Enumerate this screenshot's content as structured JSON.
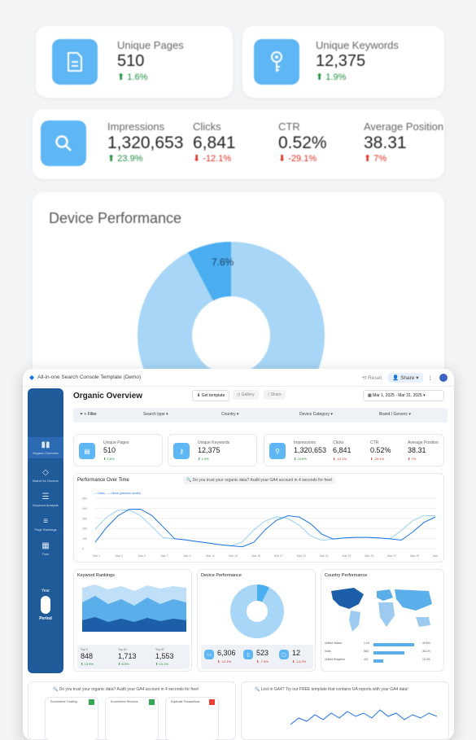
{
  "stats_row1": [
    {
      "label": "Unique Pages",
      "value": "510",
      "delta": "1.6%",
      "dir": "up",
      "icon": "document-icon"
    },
    {
      "label": "Unique Keywords",
      "value": "12,375",
      "delta": "1.9%",
      "dir": "up",
      "icon": "key-icon"
    }
  ],
  "stats_row2": {
    "icon": "search-icon",
    "metrics": [
      {
        "label": "Impressions",
        "value": "1,320,653",
        "delta": "23.9%",
        "dir": "up"
      },
      {
        "label": "Clicks",
        "value": "6,841",
        "delta": "-12.1%",
        "dir": "down"
      },
      {
        "label": "CTR",
        "value": "0.52%",
        "delta": "-29.1%",
        "dir": "down"
      },
      {
        "label": "Average Position",
        "value": "38.31",
        "delta": "7%",
        "dir": "up_red"
      }
    ]
  },
  "device_performance": {
    "title": "Device Performance",
    "slice_label": "7.6%",
    "chart_data": {
      "type": "pie",
      "categories": [
        "",
        ""
      ],
      "values": [
        92.4,
        7.6
      ],
      "title": "Device Performance"
    }
  },
  "dashboard": {
    "app_title": "All-in-one Search Console Template (Demo)",
    "top_reset": "Reset",
    "top_share": "Share",
    "page_title": "Organic Overview",
    "get_template": "Get template",
    "gallery": "Gallery",
    "share": "Share",
    "date_range": "Mar 1, 2025 - Mar 31, 2025",
    "filter_label": "+ Filter",
    "filters": [
      "Search type",
      "Country",
      "Device Category",
      "Brand / Generic"
    ],
    "sidebar": [
      "Organic Overview",
      "Brand Vs Generic",
      "Keyword Analysis",
      "Page Rankings",
      "Time"
    ],
    "sidebar_toggle_top": "Year",
    "sidebar_toggle_bottom": "Period",
    "kpis": [
      {
        "label": "Unique Pages",
        "value": "510",
        "delta": "1.6%"
      },
      {
        "label": "Unique Keywords",
        "value": "12,375",
        "delta": "1.9%"
      }
    ],
    "kpi_row": [
      {
        "label": "Impressions",
        "value": "1,320,653",
        "delta": "23.9%"
      },
      {
        "label": "Clicks",
        "value": "6,841",
        "delta": "-12.1%"
      },
      {
        "label": "CTR",
        "value": "0.52%",
        "delta": "-29.1%"
      },
      {
        "label": "Average Position",
        "value": "38.31",
        "delta": "7%"
      }
    ],
    "perf_title": "Performance Over Time",
    "banner": "Do you trust your organic data? Audit your GA4 account in 4 seconds for free!",
    "perf_legend": [
      "Clicks",
      "Clicks (previous month)"
    ],
    "perf_x": [
      "Mar 1",
      "Mar 3",
      "Mar 5",
      "Mar 7",
      "Mar 9",
      "Mar 11",
      "Mar 13",
      "Mar 15",
      "Mar 17",
      "Mar 19",
      "Mar 21",
      "Mar 23",
      "Mar 25",
      "Mar 27",
      "Mar 29",
      "Mar 31"
    ],
    "perf_y": [
      "500",
      "400",
      "300",
      "200",
      "100",
      "0"
    ],
    "kw_title": "Keyword Rankings",
    "kw_stats": [
      {
        "label": "Top 3",
        "value": "848",
        "delta": "13.9%"
      },
      {
        "label": "Top 10",
        "value": "1,713",
        "delta": "8.9%"
      },
      {
        "label": "Top 20",
        "value": "1,553",
        "delta": "10.1%"
      }
    ],
    "dev_title": "Device Performance",
    "dev_stats": [
      {
        "value": "6,306",
        "delta": "-12.4%"
      },
      {
        "value": "523",
        "delta": "-7.5%"
      },
      {
        "value": "12",
        "delta": "-14.3%"
      }
    ],
    "country_title": "Country Performance",
    "country_rows": [
      {
        "name": "United States",
        "value": "1.1K",
        "pct": "49.6%"
      },
      {
        "name": "India",
        "value": "554",
        "pct": "38.1%"
      },
      {
        "name": "United Kingdom",
        "value": "411",
        "pct": "12.2%"
      }
    ],
    "footer_left_banner": "Do you trust your organic data? Audit your GA4 account in 4 seconds for free!",
    "footer_right_banner": "Lost in GA4? Try our FREE template that contains UA reports with your GA4 data!",
    "footer_cards": [
      "Ecommerce Tracking",
      "Ecommerce Revenue",
      "Duplicate Transactions"
    ]
  }
}
